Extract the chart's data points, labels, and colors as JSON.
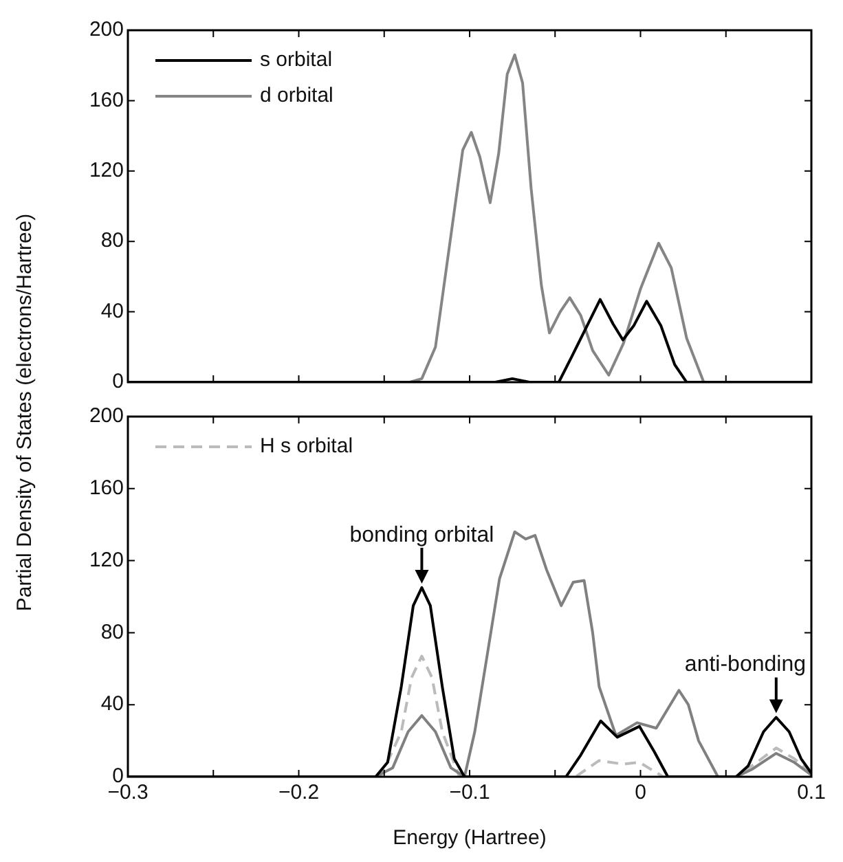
{
  "chart_data": [
    {
      "type": "line",
      "ylabel": "Partial Density of States (electrons/Hartree)",
      "legend": "top left",
      "tick_labels": "y",
      "grid": false,
      "xlim": [
        -0.3,
        0.1
      ],
      "ylim": [
        0,
        200
      ],
      "xticks": [
        {
          "value": -0.3,
          "label": null
        },
        {
          "value": -0.25,
          "label": null
        },
        {
          "value": -0.2,
          "label": null
        },
        {
          "value": -0.15,
          "label": null
        },
        {
          "value": -0.1,
          "label": null
        },
        {
          "value": -0.05,
          "label": null
        },
        {
          "value": 0,
          "label": null
        },
        {
          "value": 0.05,
          "label": null
        },
        {
          "value": 0.1,
          "label": null
        }
      ],
      "yticks": [
        0,
        40,
        80,
        120,
        160,
        200
      ],
      "series": [
        {
          "name": "s orbital",
          "color": "#000000",
          "x": [
            -0.3,
            -0.085,
            -0.075,
            -0.065,
            -0.0478,
            -0.04,
            -0.0236,
            -0.016,
            -0.0103,
            -0.004,
            0.0036,
            0.012,
            0.02,
            0.027,
            0.1
          ],
          "values": [
            0,
            0,
            2,
            0,
            0,
            15,
            47,
            33,
            24,
            32,
            46,
            32,
            10,
            0,
            0
          ]
        },
        {
          "name": "d orbital",
          "color": "#858585",
          "x": [
            -0.3,
            -0.135,
            -0.128,
            -0.12,
            -0.11,
            -0.104,
            -0.099,
            -0.094,
            -0.088,
            -0.083,
            -0.078,
            -0.0736,
            -0.069,
            -0.064,
            -0.058,
            -0.0533,
            -0.047,
            -0.0414,
            -0.035,
            -0.028,
            -0.0186,
            -0.01,
            0,
            0.0106,
            0.018,
            0.027,
            0.037,
            0.1
          ],
          "values": [
            0,
            0,
            2,
            20,
            90,
            132,
            142,
            128,
            102,
            130,
            175,
            186,
            170,
            110,
            55,
            28,
            40,
            48,
            38,
            18,
            4,
            22,
            53,
            79,
            65,
            25,
            0,
            0
          ]
        }
      ]
    },
    {
      "type": "line",
      "xlabel": "Energy (Hartree)",
      "legend": "top left",
      "grid": false,
      "xlim": [
        -0.3,
        0.1
      ],
      "ylim": [
        0,
        200
      ],
      "xticks": [
        {
          "value": -0.3,
          "label": "−0.3"
        },
        {
          "value": -0.25,
          "label": null
        },
        {
          "value": -0.2,
          "label": "−0.2"
        },
        {
          "value": -0.15,
          "label": null
        },
        {
          "value": -0.1,
          "label": "−0.1"
        },
        {
          "value": -0.05,
          "label": null
        },
        0,
        {
          "value": 0.05,
          "label": null
        },
        0.1
      ],
      "yticks": [
        0,
        40,
        80,
        120,
        160,
        200
      ],
      "annotations": [
        {
          "text": "bonding orbital",
          "x": -0.128,
          "y": 105
        },
        {
          "text": "anti-bonding",
          "x": 0.0794,
          "y": 33
        }
      ],
      "series": [
        {
          "color": "#000000",
          "x": [
            -0.3,
            -0.155,
            -0.148,
            -0.14,
            -0.133,
            -0.128,
            -0.123,
            -0.116,
            -0.109,
            -0.103,
            -0.0436,
            -0.035,
            -0.0233,
            -0.0136,
            -0.0006,
            0.008,
            0.016,
            0.056,
            0.063,
            0.072,
            0.0794,
            0.087,
            0.094,
            0.1
          ],
          "values": [
            0,
            0,
            8,
            50,
            95,
            105,
            95,
            50,
            10,
            0,
            0,
            12,
            31,
            22,
            28,
            14,
            0,
            0,
            6,
            25,
            33,
            25,
            10,
            2
          ]
        },
        {
          "color": "#808080",
          "x": [
            -0.3,
            -0.155,
            -0.145,
            -0.136,
            -0.128,
            -0.12,
            -0.111,
            -0.103,
            -0.097,
            -0.091,
            -0.0825,
            -0.0736,
            -0.0672,
            -0.0617,
            -0.055,
            -0.0464,
            -0.0394,
            -0.033,
            -0.028,
            -0.0242,
            -0.0144,
            -0.002,
            0.0092,
            0.0225,
            0.028,
            0.034,
            0.0453,
            0.056,
            0.065,
            0.0794,
            0.09,
            0.1
          ],
          "values": [
            0,
            0,
            5,
            25,
            34,
            25,
            5,
            0,
            25,
            60,
            110,
            136,
            132,
            134,
            115,
            95,
            108,
            109,
            80,
            50,
            23,
            30,
            27,
            48,
            40,
            20,
            0,
            0,
            4,
            13,
            8,
            1
          ]
        },
        {
          "name": "H s orbital",
          "color": "#bbbbbb",
          "line_style": "dashed",
          "x": [
            -0.3,
            -0.152,
            -0.14,
            -0.134,
            -0.128,
            -0.122,
            -0.116,
            -0.106,
            -0.038,
            -0.0242,
            -0.0103,
            -0.0006,
            0.0133,
            0.056,
            0.068,
            0.0794,
            0.09,
            0.1
          ],
          "values": [
            0,
            0,
            25,
            55,
            67,
            55,
            25,
            0,
            0,
            9,
            7,
            8,
            0,
            0,
            8,
            16,
            10,
            2
          ]
        }
      ]
    }
  ]
}
